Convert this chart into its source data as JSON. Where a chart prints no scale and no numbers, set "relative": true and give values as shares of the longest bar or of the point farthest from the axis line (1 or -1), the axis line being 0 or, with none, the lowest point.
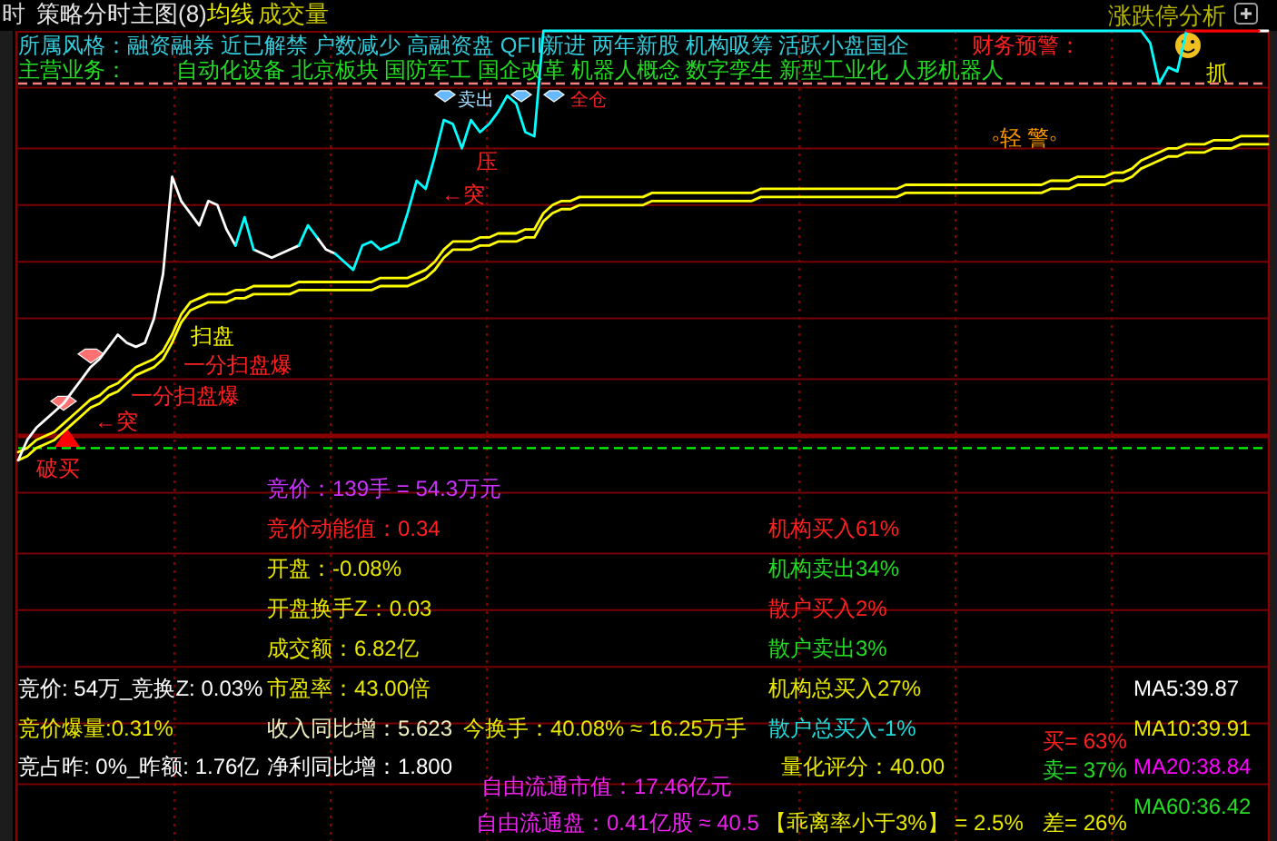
{
  "chart_data": {
    "type": "line",
    "relative": true,
    "grid": "x",
    "categories": [
      null,
      null,
      null,
      null,
      null,
      null,
      null,
      null,
      null,
      null,
      null,
      null,
      null,
      null,
      null,
      null,
      null,
      null,
      null,
      null,
      null,
      null,
      null,
      null,
      null,
      null,
      null,
      null,
      null,
      null,
      null,
      null,
      null,
      null,
      null,
      null,
      null,
      null,
      null,
      null,
      null,
      null,
      null,
      null,
      null,
      null,
      null,
      null,
      null,
      null,
      null,
      null,
      null,
      null,
      null,
      null,
      null,
      null,
      null,
      null,
      null,
      null,
      null,
      null,
      null,
      null,
      null,
      null,
      null,
      null,
      null,
      null,
      null,
      null,
      null,
      null,
      null,
      null,
      null,
      null,
      null,
      null,
      null,
      null,
      null,
      null,
      null,
      null,
      null,
      null,
      null,
      null,
      null,
      null,
      null,
      null,
      null,
      null,
      null,
      null,
      null,
      null,
      null,
      null,
      null,
      null,
      null,
      null,
      null,
      null,
      null,
      null,
      null,
      null,
      null,
      null,
      null,
      null,
      null,
      null,
      null,
      null,
      null,
      null,
      null,
      null,
      null,
      null,
      null,
      null,
      null,
      null,
      null,
      null,
      null,
      null,
      null,
      null,
      null
    ],
    "series": [
      {
        "color": "#ffff00",
        "values": [
          -0.04,
          -0.03,
          -0.01,
          0,
          0.01,
          0.03,
          0.05,
          0.07,
          0.09,
          0.1,
          0.12,
          0.13,
          0.15,
          0.17,
          0.18,
          0.19,
          0.21,
          0.25,
          0.3,
          0.33,
          0.34,
          0.35,
          0.35,
          0.35,
          0.36,
          0.36,
          0.37,
          0.37,
          0.37,
          0.37,
          0.37,
          0.38,
          0.38,
          0.38,
          0.38,
          0.38,
          0.38,
          0.38,
          0.38,
          0.38,
          0.39,
          0.39,
          0.39,
          0.39,
          0.4,
          0.41,
          0.43,
          0.46,
          0.48,
          0.48,
          0.48,
          0.49,
          0.49,
          0.5,
          0.5,
          0.5,
          0.51,
          0.51,
          0.55,
          0.57,
          0.58,
          0.58,
          0.59,
          0.59,
          0.59,
          0.59,
          0.59,
          0.59,
          0.59,
          0.59,
          0.6,
          0.6,
          0.6,
          0.6,
          0.6,
          0.6,
          0.6,
          0.6,
          0.6,
          0.6,
          0.6,
          0.6,
          0.61,
          0.61,
          0.61,
          0.61,
          0.61,
          0.61,
          0.61,
          0.61,
          0.61,
          0.61,
          0.61,
          0.61,
          0.61,
          0.61,
          0.61,
          0.61,
          0.62,
          0.62,
          0.62,
          0.62,
          0.62,
          0.62,
          0.62,
          0.62,
          0.62,
          0.62,
          0.62,
          0.62,
          0.62,
          0.62,
          0.62,
          0.62,
          0.63,
          0.63,
          0.63,
          0.64,
          0.64,
          0.64,
          0.64,
          0.65,
          0.65,
          0.66,
          0.68,
          0.69,
          0.7,
          0.71,
          0.71,
          0.72,
          0.72,
          0.72,
          0.73,
          0.73,
          0.73,
          0.74,
          0.74,
          0.74,
          0.74
        ]
      },
      {
        "color": "#ffff00",
        "values": [
          -0.06,
          -0.05,
          -0.03,
          -0.02,
          -0.01,
          0.01,
          0.03,
          0.05,
          0.07,
          0.08,
          0.1,
          0.11,
          0.13,
          0.15,
          0.16,
          0.17,
          0.19,
          0.23,
          0.28,
          0.31,
          0.32,
          0.33,
          0.33,
          0.33,
          0.34,
          0.34,
          0.35,
          0.35,
          0.35,
          0.35,
          0.35,
          0.36,
          0.36,
          0.36,
          0.36,
          0.36,
          0.36,
          0.36,
          0.36,
          0.36,
          0.37,
          0.37,
          0.37,
          0.37,
          0.38,
          0.39,
          0.41,
          0.44,
          0.46,
          0.46,
          0.46,
          0.47,
          0.47,
          0.48,
          0.48,
          0.48,
          0.49,
          0.49,
          0.53,
          0.55,
          0.56,
          0.56,
          0.57,
          0.57,
          0.57,
          0.57,
          0.57,
          0.57,
          0.57,
          0.57,
          0.58,
          0.58,
          0.58,
          0.58,
          0.58,
          0.58,
          0.58,
          0.58,
          0.58,
          0.58,
          0.58,
          0.58,
          0.59,
          0.59,
          0.59,
          0.59,
          0.59,
          0.59,
          0.59,
          0.59,
          0.59,
          0.59,
          0.59,
          0.59,
          0.59,
          0.59,
          0.59,
          0.59,
          0.6,
          0.6,
          0.6,
          0.6,
          0.6,
          0.6,
          0.6,
          0.6,
          0.6,
          0.6,
          0.6,
          0.6,
          0.6,
          0.6,
          0.6,
          0.6,
          0.61,
          0.61,
          0.61,
          0.62,
          0.62,
          0.62,
          0.62,
          0.63,
          0.63,
          0.64,
          0.66,
          0.67,
          0.68,
          0.69,
          0.69,
          0.7,
          0.7,
          0.7,
          0.71,
          0.71,
          0.71,
          0.72,
          0.72,
          0.72,
          0.72
        ]
      },
      {
        "color": "#ffffff",
        "values": [
          -0.06,
          -0.01,
          0.02,
          0.04,
          0.06,
          0.08,
          0.11,
          0.14,
          0.17,
          0.19,
          0.22,
          0.25,
          0.23,
          0.22,
          0.23,
          0.29,
          0.4,
          0.64,
          0.58,
          0.55,
          0.52,
          0.58,
          0.57,
          0.51,
          0.47,
          null,
          0.46,
          0.45,
          0.44,
          0.45,
          0.46,
          0.47,
          null,
          0.49,
          0.46,
          0.45,
          null,
          null,
          null,
          null,
          null,
          null,
          null,
          null,
          null,
          null,
          null,
          null,
          null,
          null,
          null,
          null,
          null,
          null,
          null,
          null,
          null,
          null,
          null,
          null,
          null,
          null,
          null,
          null,
          null,
          null,
          null,
          null,
          null,
          null,
          null,
          null,
          null,
          null,
          null,
          null,
          null,
          null,
          null,
          null,
          null,
          null,
          null,
          null,
          null,
          null,
          null,
          null,
          null,
          null,
          null,
          null,
          null,
          null,
          null,
          null,
          null,
          null,
          null,
          null,
          null,
          null,
          null,
          null,
          null,
          null,
          null,
          null,
          null,
          null,
          null,
          null,
          null,
          null,
          null,
          null,
          null,
          null,
          null,
          null,
          null,
          null,
          null,
          null,
          null,
          null,
          null,
          null,
          null,
          null,
          null,
          null,
          null,
          null,
          null,
          null,
          null,
          1,
          1
        ]
      },
      {
        "color": "#00ffff",
        "values": [
          null,
          null,
          null,
          null,
          null,
          null,
          null,
          null,
          null,
          null,
          null,
          null,
          null,
          null,
          null,
          null,
          null,
          null,
          null,
          null,
          null,
          null,
          null,
          null,
          0.47,
          0.54,
          0.46,
          null,
          null,
          null,
          null,
          0.47,
          0.52,
          0.49,
          null,
          0.45,
          0.43,
          0.41,
          0.47,
          0.48,
          0.46,
          0.47,
          0.48,
          0.55,
          0.63,
          0.61,
          0.69,
          0.78,
          0.77,
          0.71,
          0.78,
          0.75,
          0.77,
          0.8,
          0.84,
          0.82,
          0.75,
          0.74,
          1,
          1,
          1,
          1,
          1,
          1,
          1,
          1,
          1,
          1,
          1,
          1,
          1,
          1,
          1,
          1,
          1,
          1,
          1,
          1,
          1,
          1,
          1,
          1,
          1,
          1,
          1,
          1,
          1,
          1,
          1,
          1,
          1,
          1,
          1,
          1,
          1,
          1,
          1,
          1,
          1,
          1,
          1,
          1,
          1,
          1,
          1,
          1,
          1,
          1,
          1,
          1,
          1,
          1,
          1,
          1,
          1,
          1,
          1,
          1,
          1,
          1,
          1,
          1,
          1,
          1,
          1,
          0.97,
          0.87,
          0.91,
          0.9,
          1,
          null,
          null,
          null,
          null,
          null,
          null,
          null,
          null,
          null
        ]
      },
      {
        "color": "#ff0000",
        "values": [
          null,
          null,
          null,
          null,
          null,
          null,
          null,
          null,
          null,
          null,
          null,
          null,
          null,
          null,
          null,
          null,
          null,
          null,
          null,
          null,
          null,
          null,
          null,
          null,
          null,
          null,
          null,
          null,
          null,
          null,
          null,
          null,
          null,
          null,
          null,
          null,
          null,
          null,
          null,
          null,
          null,
          null,
          null,
          null,
          null,
          null,
          null,
          null,
          null,
          null,
          null,
          null,
          null,
          null,
          null,
          null,
          null,
          null,
          null,
          null,
          null,
          null,
          null,
          null,
          null,
          null,
          null,
          null,
          null,
          null,
          null,
          null,
          null,
          null,
          null,
          null,
          null,
          null,
          null,
          null,
          null,
          null,
          null,
          null,
          null,
          null,
          null,
          null,
          null,
          null,
          null,
          null,
          null,
          null,
          null,
          null,
          null,
          null,
          null,
          null,
          null,
          null,
          null,
          null,
          null,
          null,
          null,
          null,
          null,
          null,
          null,
          null,
          null,
          null,
          null,
          null,
          null,
          null,
          null,
          null,
          null,
          null,
          null,
          null,
          null,
          null,
          null,
          null,
          null,
          1,
          1,
          1,
          1,
          1,
          1,
          1,
          1,
          1,
          null
        ]
      }
    ],
    "ref_lines": [
      {
        "axis": "y",
        "value": 1,
        "color": "#7a0000",
        "line_style": "solid"
      },
      {
        "axis": "y",
        "value": 0.86,
        "color": "#7a0000",
        "line_style": "solid"
      },
      {
        "axis": "y",
        "value": 0.71,
        "color": "#7a0000",
        "line_style": "solid"
      },
      {
        "axis": "y",
        "value": 0.57,
        "color": "#7a0000",
        "line_style": "solid"
      },
      {
        "axis": "y",
        "value": 0.43,
        "color": "#7a0000",
        "line_style": "solid"
      },
      {
        "axis": "y",
        "value": 0.29,
        "color": "#7a0000",
        "line_style": "solid"
      },
      {
        "axis": "y",
        "value": 0.14,
        "color": "#7a0000",
        "line_style": "solid"
      },
      {
        "axis": "y",
        "value": 0,
        "color": "#8b0000",
        "line_style": "solid"
      },
      {
        "axis": "y",
        "value": -0.14,
        "color": "#7a0000",
        "line_style": "solid"
      },
      {
        "axis": "y",
        "value": -0.29,
        "color": "#7a0000",
        "line_style": "solid"
      },
      {
        "axis": "y",
        "value": -0.43,
        "color": "#7a0000",
        "line_style": "solid"
      },
      {
        "axis": "y",
        "value": -0.57,
        "color": "#7a0000",
        "line_style": "solid"
      },
      {
        "axis": "y",
        "value": -0.71,
        "color": "#7a0000",
        "line_style": "solid"
      },
      {
        "axis": "y",
        "value": -0.86,
        "color": "#7a0000",
        "line_style": "solid"
      },
      {
        "axis": "y",
        "value": 0.87,
        "color": "#ff8080",
        "line_style": "dashed"
      },
      {
        "axis": "y",
        "value": -0.03,
        "color": "#00ff00",
        "line_style": "dashed"
      }
    ],
    "annotations": [
      "时",
      "策略分时主图(8)",
      "均线",
      "成交量",
      "涨跌停分析",
      "所属风格：融资融券 近已解禁 户数减少 高融资盘 QFII新进 两年新股 机构吸筹 活跃小盘国企",
      "财务预警：",
      "主营业务：",
      "自动化设备 北京板块 国防军工 国企改革 机器人概念 数字孪生 新型工业化 人形机器人",
      "◦轻 警◦",
      "压",
      "←突",
      "卖出",
      "全仓",
      "抓",
      "一分扫盘爆",
      "扫盘",
      "一分扫盘爆",
      "←突",
      "破买",
      "竞价：139手 = 54.3万元",
      "竞价动能值：0.34",
      "开盘：-0.08%",
      "开盘换手Z：0.03",
      "成交额：6.82亿",
      "竞价: 54万_竞换Z: 0.03%",
      "市盈率：43.00倍",
      "竞价爆量:0.31%",
      "收入同比增：5.623",
      "今换手：40.08% ≈ 16.25万手",
      "竞占昨: 0%_昨额: 1.76亿",
      "净利同比增：1.800",
      "自由流通市值：17.46亿元",
      "自由流通盘：0.41亿股 ≈ 40.5",
      "机构买入61%",
      "机构卖出34%",
      "散户买入2%",
      "散户卖出3%",
      "机构总买入27%",
      "散户总买入-1%",
      "量化评分：40.00",
      "【乖离率小于3%】 = 2.5%",
      "买= 63%",
      "卖= 37%",
      "差= 26%",
      "MA5:39.87",
      "MA10:39.91",
      "MA20:38.84",
      "MA60:36.42"
    ]
  }
}
